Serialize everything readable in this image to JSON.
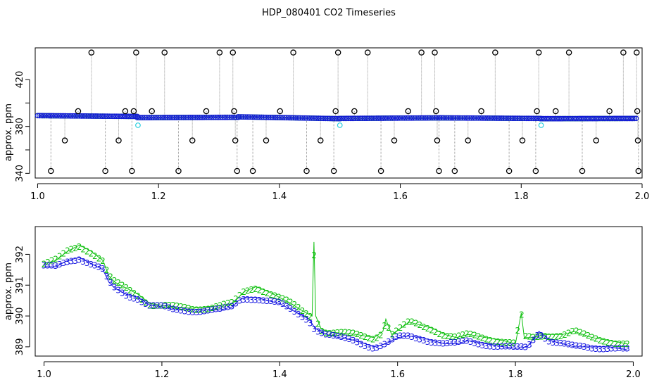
{
  "title": "HDP_080401  CO2 Timeseries",
  "colors": {
    "axis": "#000000",
    "outlier": "#000000",
    "blue": "#1010e0",
    "green": "#10c010",
    "cyan": "#30d0e0",
    "gray": "#9a9a9a"
  },
  "chart_data": [
    {
      "type": "scatter",
      "name": "top-panel",
      "ylabel": "approx. ppm",
      "xlim": [
        0.996,
        2.0
      ],
      "ylim": [
        336,
        447
      ],
      "xticks": [
        1.0,
        1.2,
        1.4,
        1.6,
        1.8,
        2.0
      ],
      "xtick_labels": [
        "1.0",
        "1.2",
        "1.4",
        "1.6",
        "1.8",
        "2.0"
      ],
      "yticks": [
        340,
        360,
        380,
        400,
        420
      ],
      "ytick_labels": [
        "340",
        "",
        "380",
        "",
        "420"
      ],
      "baseline_segments": [
        {
          "x0": 1.0,
          "x1": 1.165,
          "y0": 389.2,
          "y1": 388.5
        },
        {
          "x0": 1.165,
          "x1": 1.332,
          "y0": 387.5,
          "y1": 387.8
        },
        {
          "x0": 1.332,
          "x1": 1.5,
          "y0": 388.2,
          "y1": 386.6
        },
        {
          "x0": 1.5,
          "x1": 1.665,
          "y0": 386.8,
          "y1": 387.3
        },
        {
          "x0": 1.665,
          "x1": 1.832,
          "y0": 387.3,
          "y1": 386.8
        },
        {
          "x0": 1.832,
          "x1": 1.99,
          "y0": 386.6,
          "y1": 386.8
        }
      ],
      "outliers": [
        {
          "x": 1.022,
          "y": 342
        },
        {
          "x": 1.045,
          "y": 368
        },
        {
          "x": 1.067,
          "y": 393
        },
        {
          "x": 1.089,
          "y": 443
        },
        {
          "x": 1.112,
          "y": 342
        },
        {
          "x": 1.134,
          "y": 368
        },
        {
          "x": 1.145,
          "y": 393
        },
        {
          "x": 1.156,
          "y": 342
        },
        {
          "x": 1.159,
          "y": 393
        },
        {
          "x": 1.163,
          "y": 443
        },
        {
          "x": 1.189,
          "y": 393
        },
        {
          "x": 1.21,
          "y": 443
        },
        {
          "x": 1.233,
          "y": 342
        },
        {
          "x": 1.256,
          "y": 368
        },
        {
          "x": 1.279,
          "y": 393
        },
        {
          "x": 1.301,
          "y": 443
        },
        {
          "x": 1.323,
          "y": 443
        },
        {
          "x": 1.325,
          "y": 393
        },
        {
          "x": 1.327,
          "y": 368
        },
        {
          "x": 1.33,
          "y": 342
        },
        {
          "x": 1.356,
          "y": 342
        },
        {
          "x": 1.378,
          "y": 368
        },
        {
          "x": 1.401,
          "y": 393
        },
        {
          "x": 1.423,
          "y": 443
        },
        {
          "x": 1.445,
          "y": 342
        },
        {
          "x": 1.468,
          "y": 368
        },
        {
          "x": 1.49,
          "y": 342
        },
        {
          "x": 1.493,
          "y": 393
        },
        {
          "x": 1.497,
          "y": 443
        },
        {
          "x": 1.524,
          "y": 393
        },
        {
          "x": 1.546,
          "y": 443
        },
        {
          "x": 1.568,
          "y": 342
        },
        {
          "x": 1.59,
          "y": 368
        },
        {
          "x": 1.613,
          "y": 393
        },
        {
          "x": 1.635,
          "y": 443
        },
        {
          "x": 1.657,
          "y": 443
        },
        {
          "x": 1.659,
          "y": 393
        },
        {
          "x": 1.661,
          "y": 368
        },
        {
          "x": 1.664,
          "y": 342
        },
        {
          "x": 1.69,
          "y": 342
        },
        {
          "x": 1.712,
          "y": 368
        },
        {
          "x": 1.734,
          "y": 393
        },
        {
          "x": 1.757,
          "y": 443
        },
        {
          "x": 1.78,
          "y": 342
        },
        {
          "x": 1.802,
          "y": 368
        },
        {
          "x": 1.824,
          "y": 342
        },
        {
          "x": 1.826,
          "y": 393
        },
        {
          "x": 1.829,
          "y": 443
        },
        {
          "x": 1.857,
          "y": 393
        },
        {
          "x": 1.879,
          "y": 443
        },
        {
          "x": 1.901,
          "y": 342
        },
        {
          "x": 1.924,
          "y": 368
        },
        {
          "x": 1.946,
          "y": 393
        },
        {
          "x": 1.969,
          "y": 443
        },
        {
          "x": 1.991,
          "y": 443
        },
        {
          "x": 1.992,
          "y": 393
        },
        {
          "x": 1.993,
          "y": 368
        },
        {
          "x": 1.994,
          "y": 342
        }
      ],
      "cyan_points": [
        {
          "x": 1.166,
          "y": 381
        },
        {
          "x": 1.5,
          "y": 381
        },
        {
          "x": 1.833,
          "y": 381
        }
      ]
    },
    {
      "type": "line",
      "name": "bottom-panel",
      "ylabel": "approx. ppm",
      "xlim": [
        0.985,
        2.015
      ],
      "ylim": [
        388.7,
        392.9
      ],
      "xticks": [
        1.0,
        1.2,
        1.4,
        1.6,
        1.8,
        2.0
      ],
      "xtick_labels": [
        "1.0",
        "1.2",
        "1.4",
        "1.6",
        "1.8",
        "2.0"
      ],
      "yticks": [
        389,
        390,
        391,
        392
      ],
      "ytick_labels": [
        "389",
        "390",
        "391",
        "392"
      ],
      "series": [
        {
          "marker": "2",
          "x": [
            1.0,
            1.02,
            1.04,
            1.06,
            1.08,
            1.1,
            1.11,
            1.12,
            1.14,
            1.16,
            1.18,
            1.2,
            1.22,
            1.25,
            1.28,
            1.3,
            1.32,
            1.33,
            1.34,
            1.36,
            1.38,
            1.4,
            1.42,
            1.44,
            1.455,
            1.458,
            1.461,
            1.47,
            1.48,
            1.5,
            1.53,
            1.56,
            1.575,
            1.58,
            1.59,
            1.62,
            1.64,
            1.66,
            1.68,
            1.7,
            1.72,
            1.75,
            1.78,
            1.8,
            1.81,
            1.815,
            1.83,
            1.85,
            1.88,
            1.9,
            1.93,
            1.96,
            1.99
          ],
          "y": [
            391.7,
            391.8,
            392.1,
            392.3,
            392.1,
            391.8,
            391.3,
            391.1,
            390.9,
            390.7,
            390.4,
            390.35,
            390.3,
            390.25,
            390.3,
            390.35,
            390.4,
            390.6,
            390.8,
            390.95,
            390.8,
            390.6,
            390.4,
            390.15,
            390.0,
            392.4,
            390.0,
            389.6,
            389.5,
            389.45,
            389.4,
            389.3,
            389.5,
            389.9,
            389.4,
            389.8,
            389.7,
            389.6,
            389.4,
            389.3,
            389.4,
            389.3,
            389.2,
            389.1,
            390.1,
            389.3,
            389.3,
            389.4,
            389.4,
            389.5,
            389.3,
            389.2,
            389.1
          ]
        },
        {
          "marker": "3",
          "x": [
            1.0,
            1.02,
            1.04,
            1.06,
            1.08,
            1.1,
            1.11,
            1.12,
            1.14,
            1.16,
            1.18,
            1.2,
            1.22,
            1.25,
            1.28,
            1.3,
            1.32,
            1.33,
            1.34,
            1.36,
            1.38,
            1.4,
            1.42,
            1.44,
            1.45,
            1.46,
            1.48,
            1.5,
            1.53,
            1.56,
            1.58,
            1.6,
            1.62,
            1.64,
            1.66,
            1.68,
            1.7,
            1.72,
            1.75,
            1.78,
            1.8,
            1.82,
            1.84,
            1.86,
            1.88,
            1.9,
            1.93,
            1.96,
            1.99
          ],
          "y": [
            391.6,
            391.6,
            391.8,
            391.9,
            391.7,
            391.5,
            391.1,
            390.9,
            390.7,
            390.6,
            390.35,
            390.3,
            390.2,
            390.2,
            390.2,
            390.2,
            390.3,
            390.5,
            390.6,
            390.6,
            390.5,
            390.4,
            390.2,
            390.0,
            389.9,
            389.6,
            389.4,
            389.3,
            389.2,
            389.0,
            389.1,
            389.3,
            389.35,
            389.3,
            389.2,
            389.1,
            389.1,
            389.2,
            389.1,
            389.0,
            388.95,
            389.0,
            389.5,
            389.2,
            389.1,
            389.0,
            389.0,
            389.0,
            388.9
          ]
        }
      ]
    }
  ]
}
